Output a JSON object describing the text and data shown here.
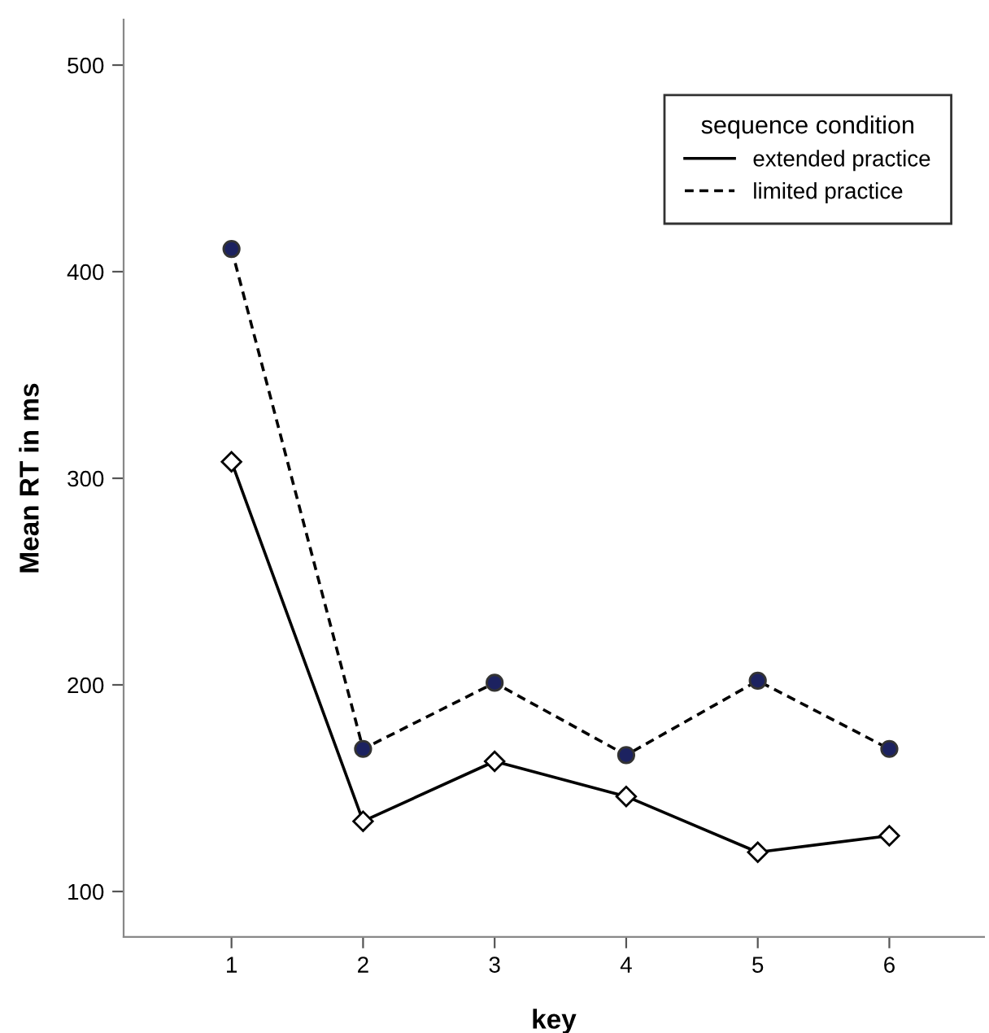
{
  "chart_data": {
    "type": "line",
    "xlabel": "key",
    "ylabel": "Mean RT in ms",
    "legend_title": "sequence condition",
    "legend": "top right",
    "grid": false,
    "x": [
      1,
      2,
      3,
      4,
      5,
      6
    ],
    "xlim": [
      0.18,
      6.72
    ],
    "xticks": [
      1,
      2,
      3,
      4,
      5,
      6
    ],
    "ylim": [
      78,
      522
    ],
    "yticks": [
      100,
      200,
      300,
      400,
      500
    ],
    "series": [
      {
        "name": "extended practice",
        "color": "#000000",
        "line_style": "solid",
        "marker": "diamond",
        "values": [
          308,
          134,
          163,
          146,
          119,
          127
        ]
      },
      {
        "name": "limited practice",
        "color": "#1c2260",
        "line_style": "dashed",
        "marker": "circle",
        "values": [
          411,
          169,
          201,
          166,
          202,
          169
        ]
      }
    ]
  }
}
